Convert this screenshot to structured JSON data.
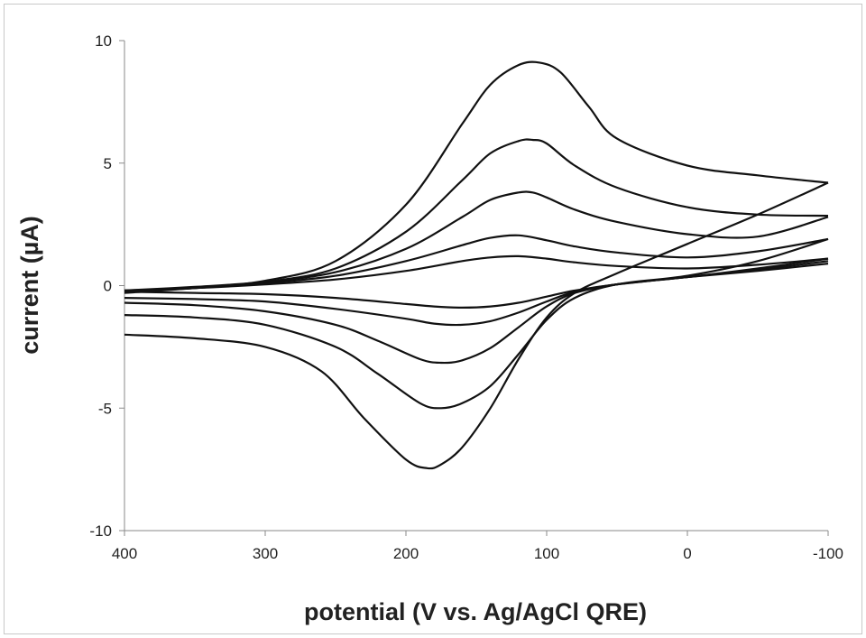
{
  "chart_data": {
    "type": "line",
    "title": "",
    "xlabel": "potential (V vs. Ag/AgCl QRE)",
    "ylabel": "current (µA)",
    "xlim": [
      400,
      -100
    ],
    "ylim": [
      -10,
      10
    ],
    "x_reversed": true,
    "xticks": [
      400,
      300,
      200,
      100,
      0,
      -100
    ],
    "xtick_labels": [
      "400",
      "300",
      "200",
      "100",
      "0",
      "-100"
    ],
    "yticks": [
      -10,
      -5,
      0,
      5,
      10
    ],
    "ytick_labels": [
      "-10",
      "-5",
      "0",
      "5",
      "10"
    ],
    "grid": false,
    "legend": false,
    "line_color": "#111111",
    "series": [
      {
        "forward": [
          [
            400,
            -0.2
          ],
          [
            350,
            -0.1
          ],
          [
            300,
            0.05
          ],
          [
            250,
            0.25
          ],
          [
            200,
            0.6
          ],
          [
            160,
            1.0
          ],
          [
            140,
            1.15
          ],
          [
            120,
            1.2
          ],
          [
            100,
            1.1
          ],
          [
            80,
            0.95
          ],
          [
            50,
            0.8
          ],
          [
            0,
            0.7
          ],
          [
            -50,
            0.85
          ],
          [
            -100,
            1.1
          ]
        ],
        "reverse": [
          [
            -100,
            0.9
          ],
          [
            -50,
            0.6
          ],
          [
            0,
            0.35
          ],
          [
            50,
            0.05
          ],
          [
            80,
            -0.2
          ],
          [
            100,
            -0.45
          ],
          [
            120,
            -0.7
          ],
          [
            140,
            -0.85
          ],
          [
            160,
            -0.9
          ],
          [
            180,
            -0.85
          ],
          [
            200,
            -0.75
          ],
          [
            250,
            -0.5
          ],
          [
            300,
            -0.35
          ],
          [
            350,
            -0.3
          ],
          [
            400,
            -0.25
          ]
        ]
      },
      {
        "forward": [
          [
            400,
            -0.25
          ],
          [
            350,
            -0.1
          ],
          [
            300,
            0.1
          ],
          [
            250,
            0.4
          ],
          [
            200,
            1.0
          ],
          [
            160,
            1.65
          ],
          [
            140,
            1.95
          ],
          [
            120,
            2.05
          ],
          [
            100,
            1.85
          ],
          [
            80,
            1.6
          ],
          [
            50,
            1.35
          ],
          [
            0,
            1.15
          ],
          [
            -50,
            1.4
          ],
          [
            -100,
            1.9
          ]
        ],
        "reverse": [
          [
            -100,
            1.0
          ],
          [
            -50,
            0.65
          ],
          [
            0,
            0.35
          ],
          [
            50,
            0.05
          ],
          [
            80,
            -0.25
          ],
          [
            100,
            -0.65
          ],
          [
            120,
            -1.1
          ],
          [
            140,
            -1.45
          ],
          [
            160,
            -1.6
          ],
          [
            180,
            -1.55
          ],
          [
            200,
            -1.35
          ],
          [
            250,
            -0.95
          ],
          [
            300,
            -0.65
          ],
          [
            350,
            -0.55
          ],
          [
            400,
            -0.5
          ]
        ]
      },
      {
        "forward": [
          [
            400,
            -0.2
          ],
          [
            350,
            -0.05
          ],
          [
            300,
            0.15
          ],
          [
            250,
            0.55
          ],
          [
            200,
            1.5
          ],
          [
            160,
            2.8
          ],
          [
            140,
            3.5
          ],
          [
            120,
            3.8
          ],
          [
            110,
            3.8
          ],
          [
            100,
            3.6
          ],
          [
            80,
            3.1
          ],
          [
            50,
            2.6
          ],
          [
            0,
            2.1
          ],
          [
            -50,
            2.0
          ],
          [
            -100,
            2.8
          ]
        ],
        "reverse": [
          [
            -100,
            1.1
          ],
          [
            -50,
            0.7
          ],
          [
            0,
            0.35
          ],
          [
            50,
            0.05
          ],
          [
            80,
            -0.3
          ],
          [
            100,
            -0.85
          ],
          [
            120,
            -1.7
          ],
          [
            140,
            -2.55
          ],
          [
            160,
            -3.05
          ],
          [
            175,
            -3.15
          ],
          [
            190,
            -3.0
          ],
          [
            220,
            -2.25
          ],
          [
            250,
            -1.6
          ],
          [
            300,
            -1.05
          ],
          [
            350,
            -0.8
          ],
          [
            400,
            -0.7
          ]
        ]
      },
      {
        "forward": [
          [
            400,
            -0.25
          ],
          [
            350,
            -0.1
          ],
          [
            300,
            0.15
          ],
          [
            250,
            0.7
          ],
          [
            200,
            2.2
          ],
          [
            160,
            4.3
          ],
          [
            140,
            5.4
          ],
          [
            120,
            5.9
          ],
          [
            110,
            5.95
          ],
          [
            100,
            5.8
          ],
          [
            80,
            4.9
          ],
          [
            50,
            4.0
          ],
          [
            0,
            3.2
          ],
          [
            -50,
            2.9
          ],
          [
            -100,
            2.85
          ]
        ],
        "reverse": [
          [
            -100,
            1.9
          ],
          [
            -50,
            1.0
          ],
          [
            0,
            0.4
          ],
          [
            50,
            0.05
          ],
          [
            80,
            -0.5
          ],
          [
            100,
            -1.4
          ],
          [
            120,
            -2.8
          ],
          [
            140,
            -4.1
          ],
          [
            160,
            -4.8
          ],
          [
            175,
            -5.0
          ],
          [
            190,
            -4.8
          ],
          [
            220,
            -3.6
          ],
          [
            250,
            -2.5
          ],
          [
            300,
            -1.6
          ],
          [
            350,
            -1.3
          ],
          [
            400,
            -1.2
          ]
        ]
      },
      {
        "forward": [
          [
            400,
            -0.3
          ],
          [
            350,
            -0.1
          ],
          [
            300,
            0.2
          ],
          [
            250,
            1.0
          ],
          [
            200,
            3.3
          ],
          [
            160,
            6.6
          ],
          [
            140,
            8.2
          ],
          [
            120,
            9.0
          ],
          [
            105,
            9.1
          ],
          [
            90,
            8.7
          ],
          [
            70,
            7.3
          ],
          [
            50,
            6.0
          ],
          [
            0,
            4.9
          ],
          [
            -50,
            4.5
          ],
          [
            -100,
            4.2
          ]
        ],
        "reverse": [
          [
            -100,
            4.2
          ],
          [
            -50,
            2.9
          ],
          [
            0,
            1.7
          ],
          [
            50,
            0.5
          ],
          [
            80,
            -0.3
          ],
          [
            100,
            -1.3
          ],
          [
            120,
            -3.0
          ],
          [
            140,
            -5.0
          ],
          [
            160,
            -6.6
          ],
          [
            175,
            -7.3
          ],
          [
            185,
            -7.45
          ],
          [
            200,
            -7.1
          ],
          [
            230,
            -5.4
          ],
          [
            260,
            -3.5
          ],
          [
            300,
            -2.5
          ],
          [
            350,
            -2.15
          ],
          [
            400,
            -2.0
          ]
        ]
      }
    ]
  }
}
